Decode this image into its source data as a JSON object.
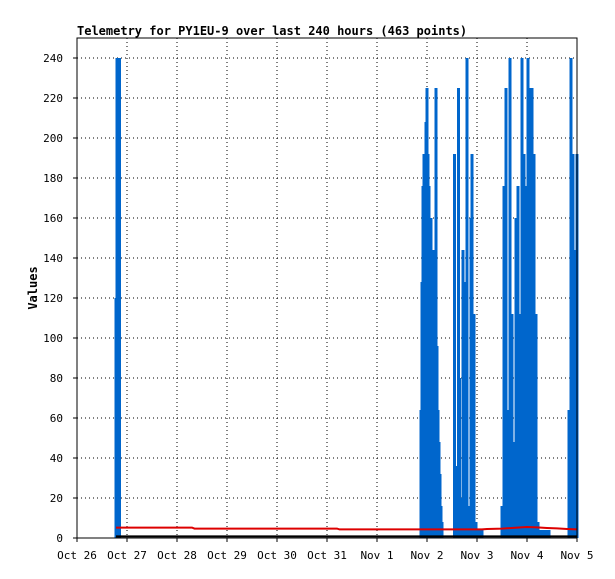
{
  "chart_data": {
    "type": "line",
    "title": "Telemetry for PY1EU-9 over last 240 hours (463 points)",
    "xlabel": "",
    "ylabel": "Values",
    "xlim": [
      "Oct 26",
      "Nov 5"
    ],
    "ylim": [
      0,
      250
    ],
    "x_tick_labels": [
      "Oct 26",
      "Oct 27",
      "Oct 28",
      "Oct 29",
      "Oct 30",
      "Oct 31",
      "Nov 1",
      "Nov 2",
      "Nov 3",
      "Nov 4",
      "Nov 5"
    ],
    "y_ticks": [
      0,
      20,
      40,
      60,
      80,
      100,
      120,
      140,
      160,
      180,
      200,
      220,
      240
    ],
    "grid": "dotted",
    "legend": "none",
    "colors": {
      "blue": "#0066cc",
      "red": "#dd0000",
      "black": "#000000"
    },
    "series": [
      {
        "color": "blue",
        "style": "vertical spikes",
        "x_days_since_oct26": [
          0.78,
          0.8,
          0.82,
          0.85,
          6.88,
          6.9,
          6.92,
          6.94,
          6.96,
          6.98,
          7.0,
          7.02,
          7.04,
          7.06,
          7.08,
          7.1,
          7.12,
          7.14,
          7.16,
          7.18,
          7.2,
          7.22,
          7.24,
          7.26,
          7.28,
          7.3,
          7.55,
          7.58,
          7.6,
          7.63,
          7.65,
          7.68,
          7.72,
          7.76,
          7.8,
          7.84,
          7.88,
          7.9,
          7.92,
          7.94,
          7.98,
          8.02,
          8.06,
          8.1,
          8.5,
          8.54,
          8.58,
          8.62,
          8.66,
          8.7,
          8.74,
          8.78,
          8.82,
          8.86,
          8.9,
          8.94,
          8.98,
          9.02,
          9.06,
          9.1,
          9.14,
          9.18,
          9.22,
          9.26,
          9.32,
          9.36,
          9.4,
          9.44,
          9.84,
          9.88,
          9.92,
          9.95,
          9.97,
          10.0
        ],
        "y": [
          120,
          240,
          240,
          240,
          64,
          128,
          176,
          192,
          176,
          208,
          225,
          192,
          176,
          96,
          160,
          48,
          72,
          144,
          128,
          225,
          96,
          64,
          48,
          32,
          16,
          8,
          192,
          36,
          12,
          225,
          80,
          20,
          144,
          128,
          240,
          16,
          160,
          192,
          112,
          112,
          8,
          4,
          4,
          4,
          16,
          176,
          225,
          64,
          240,
          112,
          48,
          160,
          176,
          112,
          240,
          192,
          176,
          240,
          225,
          225,
          192,
          112,
          8,
          4,
          4,
          4,
          4,
          4,
          64,
          240,
          192,
          112,
          144,
          192
        ]
      },
      {
        "color": "red",
        "style": "line",
        "x_days_since_oct26": [
          0.78,
          2.3,
          2.35,
          5.2,
          5.25,
          8.1,
          8.2,
          8.5,
          8.8,
          9.0,
          9.2,
          9.4,
          9.6,
          9.8,
          10.0
        ],
        "y": [
          5.2,
          5.2,
          4.7,
          4.7,
          4.3,
          4.3,
          4.5,
          4.7,
          5.2,
          5.5,
          5.3,
          5.0,
          4.8,
          4.5,
          4.3
        ]
      },
      {
        "color": "black",
        "style": "line",
        "x_days_since_oct26": [
          0.78,
          10.0
        ],
        "y": [
          0.8,
          0.8
        ]
      }
    ]
  }
}
